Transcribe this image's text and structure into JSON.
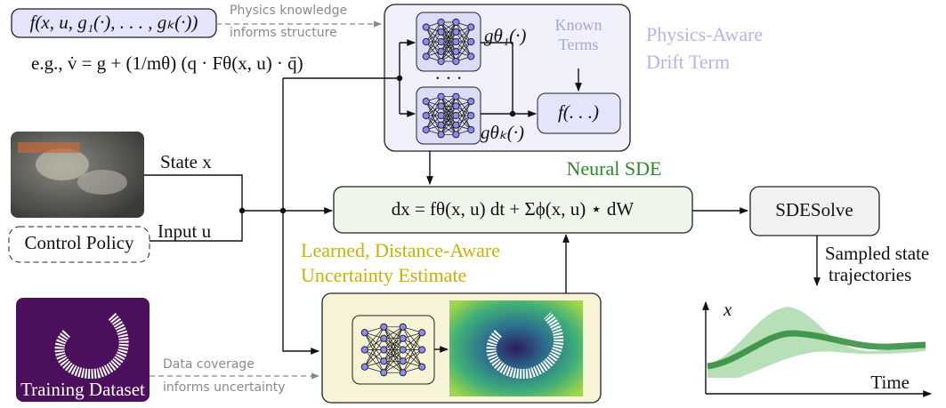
{
  "prior_box": "f(x, u, g₁(·), . . . , gₖ(·))",
  "physics_note": [
    "Physics knowledge",
    "informs structure"
  ],
  "example": "e.g., v̇ = g + (1/mθ) (q · Fθ(x, u) · q̄)",
  "drift": {
    "g_first": "gθ₁(·)",
    "dots": "· · ·",
    "g_last": "gθₖ(·)",
    "known_terms": [
      "Known",
      "Terms"
    ],
    "f_box": "f(. . .)",
    "title": [
      "Physics-Aware",
      "Drift Term"
    ]
  },
  "inputs": {
    "state": "State x",
    "input": "Input u",
    "policy": "Control Policy"
  },
  "sde": {
    "title": "Neural SDE",
    "equation": "dx = fθ(x, u) dt + Σϕ(x, u) ⋆ dW"
  },
  "solver": {
    "label": "SDESolve",
    "output": [
      "Sampled state",
      "trajectories"
    ]
  },
  "uncertainty": {
    "title": [
      "Learned, Distance-Aware",
      "Uncertainty Estimate"
    ]
  },
  "dataset": {
    "label": "Training Dataset",
    "note": [
      "Data coverage",
      "informs uncertainty"
    ]
  },
  "plot": {
    "y_label": "x",
    "x_label": "Time"
  }
}
